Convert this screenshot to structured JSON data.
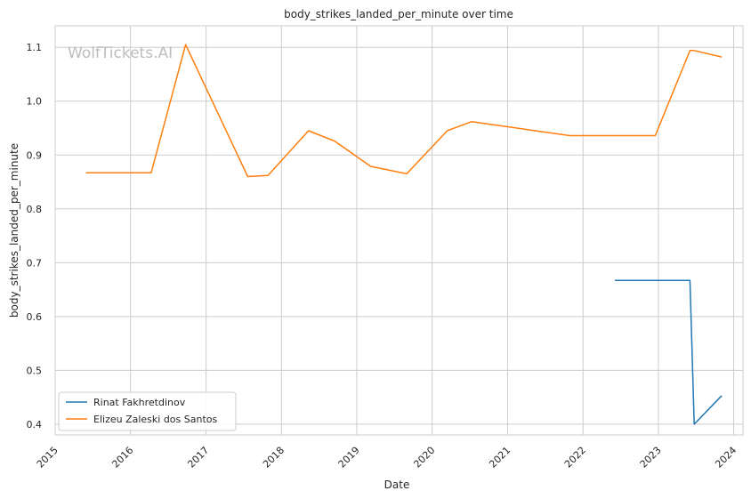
{
  "chart_data": {
    "type": "line",
    "title": "body_strikes_landed_per_minute over time",
    "xlabel": "Date",
    "ylabel": "body_strikes_landed_per_minute",
    "watermark": "WolfTickets.AI",
    "x_ticks": [
      "2015",
      "2016",
      "2017",
      "2018",
      "2019",
      "2020",
      "2021",
      "2022",
      "2023",
      "2024"
    ],
    "y_ticks": [
      "0.4",
      "0.5",
      "0.6",
      "0.7",
      "0.8",
      "0.9",
      "1.0",
      "1.1"
    ],
    "xlim": [
      "2015-01-01",
      "2024-02-15"
    ],
    "ylim": [
      0.38,
      1.14
    ],
    "grid": true,
    "legend_position": "lower-left",
    "series": [
      {
        "name": "Rinat Fakhretdinov",
        "color": "#1f77b4",
        "points": [
          {
            "x": "2022-06-04",
            "y": 0.667
          },
          {
            "x": "2023-06-03",
            "y": 0.667
          },
          {
            "x": "2023-06-24",
            "y": 0.4
          },
          {
            "x": "2023-11-04",
            "y": 0.453
          }
        ]
      },
      {
        "name": "Elizeu Zaleski dos Santos",
        "color": "#ff7f0e",
        "points": [
          {
            "x": "2015-05-30",
            "y": 0.867
          },
          {
            "x": "2016-04-10",
            "y": 0.867
          },
          {
            "x": "2016-09-24",
            "y": 1.105
          },
          {
            "x": "2017-07-22",
            "y": 0.86
          },
          {
            "x": "2017-10-28",
            "y": 0.862
          },
          {
            "x": "2018-05-12",
            "y": 0.945
          },
          {
            "x": "2018-09-15",
            "y": 0.926
          },
          {
            "x": "2019-03-09",
            "y": 0.879
          },
          {
            "x": "2019-08-31",
            "y": 0.865
          },
          {
            "x": "2020-03-14",
            "y": 0.945
          },
          {
            "x": "2020-07-11",
            "y": 0.962
          },
          {
            "x": "2021-10-30",
            "y": 0.936
          },
          {
            "x": "2022-12-17",
            "y": 0.936
          },
          {
            "x": "2023-06-03",
            "y": 1.094
          },
          {
            "x": "2023-06-24",
            "y": 1.094
          },
          {
            "x": "2023-11-04",
            "y": 1.082
          }
        ]
      }
    ]
  }
}
